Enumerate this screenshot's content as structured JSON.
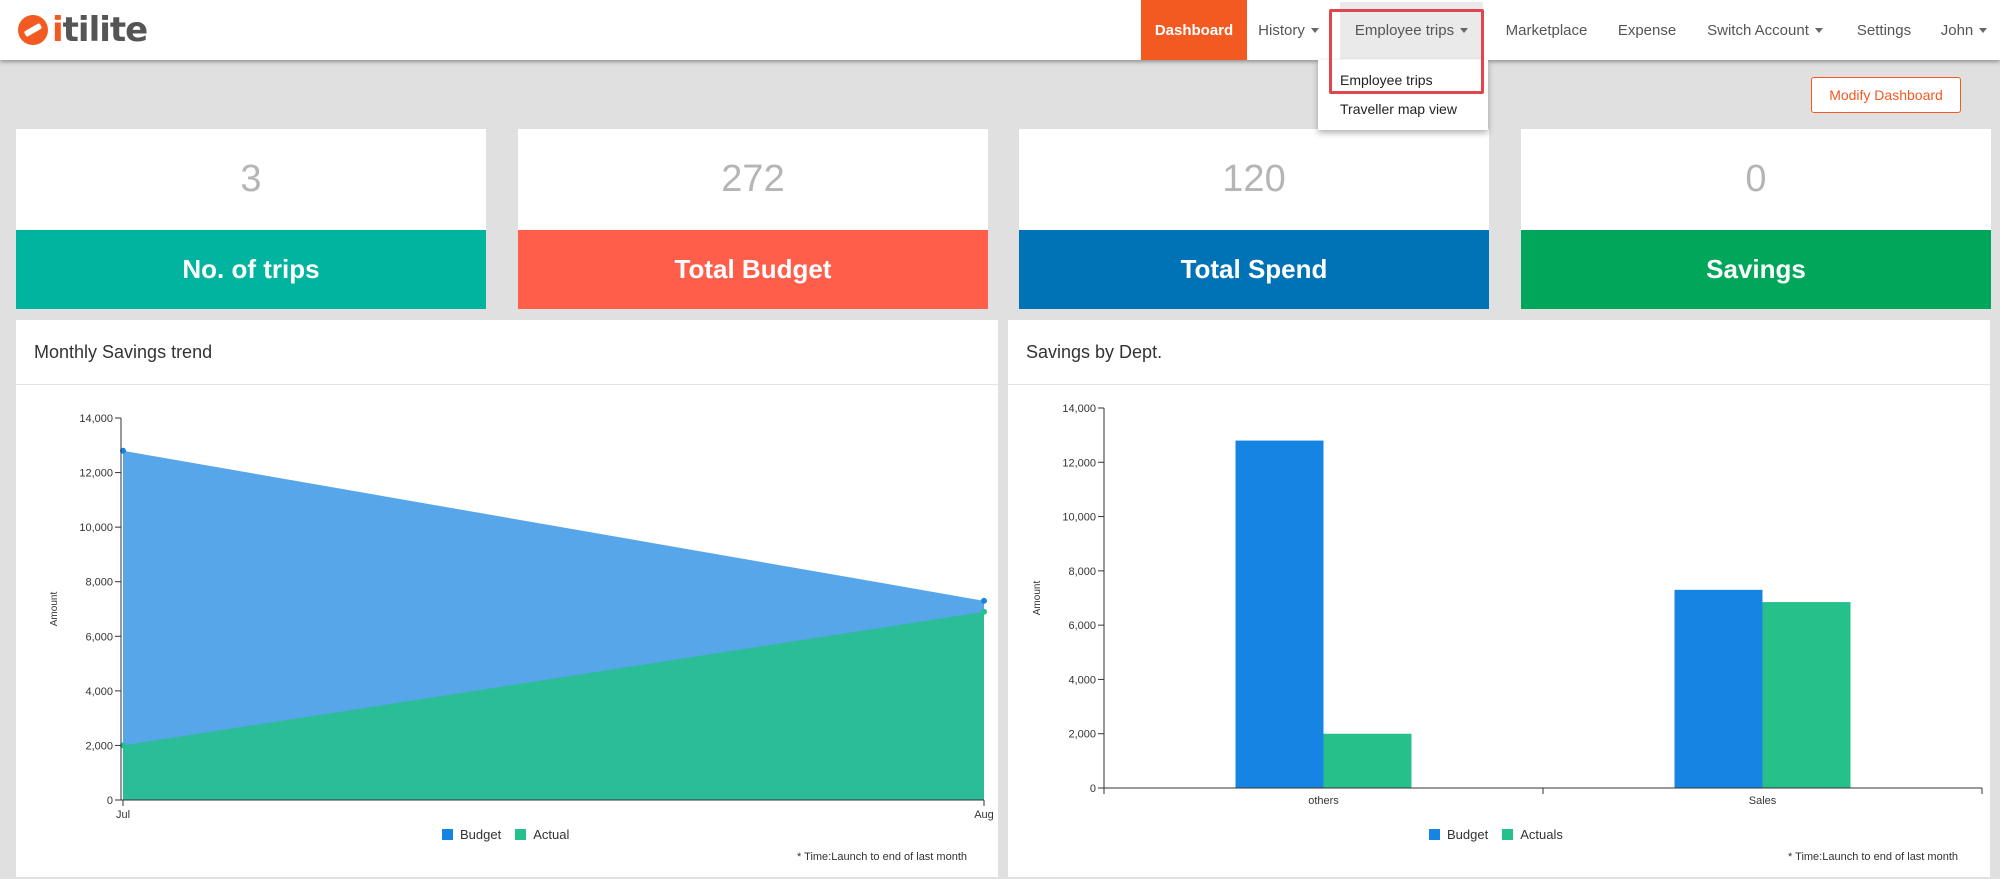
{
  "logo": {
    "accent": "i",
    "text": "tilite"
  },
  "nav": {
    "items": [
      {
        "label": "Dashboard"
      },
      {
        "label": "History"
      },
      {
        "label": "Employee trips"
      },
      {
        "label": "Marketplace"
      },
      {
        "label": "Expense"
      },
      {
        "label": "Switch Account"
      },
      {
        "label": "Settings"
      },
      {
        "label": "John"
      }
    ],
    "dropdown": [
      "Employee trips",
      "Traveller map view"
    ]
  },
  "toolbar": {
    "modify_label": "Modify Dashboard"
  },
  "kpis": [
    {
      "value": "3",
      "label": "No. of trips",
      "color": "#00b4a0"
    },
    {
      "value": "272",
      "label": "Total Budget",
      "color": "#ff5f4a"
    },
    {
      "value": "120",
      "label": "Total Spend",
      "color": "#0073b7"
    },
    {
      "value": "0",
      "label": "Savings",
      "color": "#00a65a"
    }
  ],
  "colors": {
    "brand": "#f25a22",
    "budget": "#1684e2",
    "actual": "#26c08b"
  },
  "panels": {
    "trend": {
      "title": "Monthly Savings trend",
      "footnote": "* Time:Launch to end of last month"
    },
    "dept": {
      "title": "Savings by Dept.",
      "footnote": "* Time:Launch to end of last month"
    }
  },
  "chart_data": [
    {
      "type": "area",
      "title": "Monthly Savings trend",
      "xlabel": "",
      "ylabel": "Amount",
      "categories": [
        "Jul",
        "Aug"
      ],
      "series": [
        {
          "name": "Budget",
          "values": [
            12800,
            7300
          ]
        },
        {
          "name": "Actual",
          "values": [
            2000,
            6900
          ]
        }
      ],
      "ylim": [
        0,
        14000
      ],
      "yticks": [
        "0",
        "2,000",
        "4,000",
        "6,000",
        "8,000",
        "10,000",
        "12,000",
        "14,000"
      ],
      "legend": "bottom",
      "grid": false
    },
    {
      "type": "bar",
      "title": "Savings by Dept.",
      "xlabel": "",
      "ylabel": "Amount",
      "categories": [
        "others",
        "Sales"
      ],
      "series": [
        {
          "name": "Budget",
          "values": [
            12800,
            7300
          ]
        },
        {
          "name": "Actuals",
          "values": [
            2000,
            6850
          ]
        }
      ],
      "ylim": [
        0,
        14000
      ],
      "yticks": [
        "0",
        "2,000",
        "4,000",
        "6,000",
        "8,000",
        "10,000",
        "12,000",
        "14,000"
      ],
      "legend": "bottom",
      "grid": false
    }
  ]
}
